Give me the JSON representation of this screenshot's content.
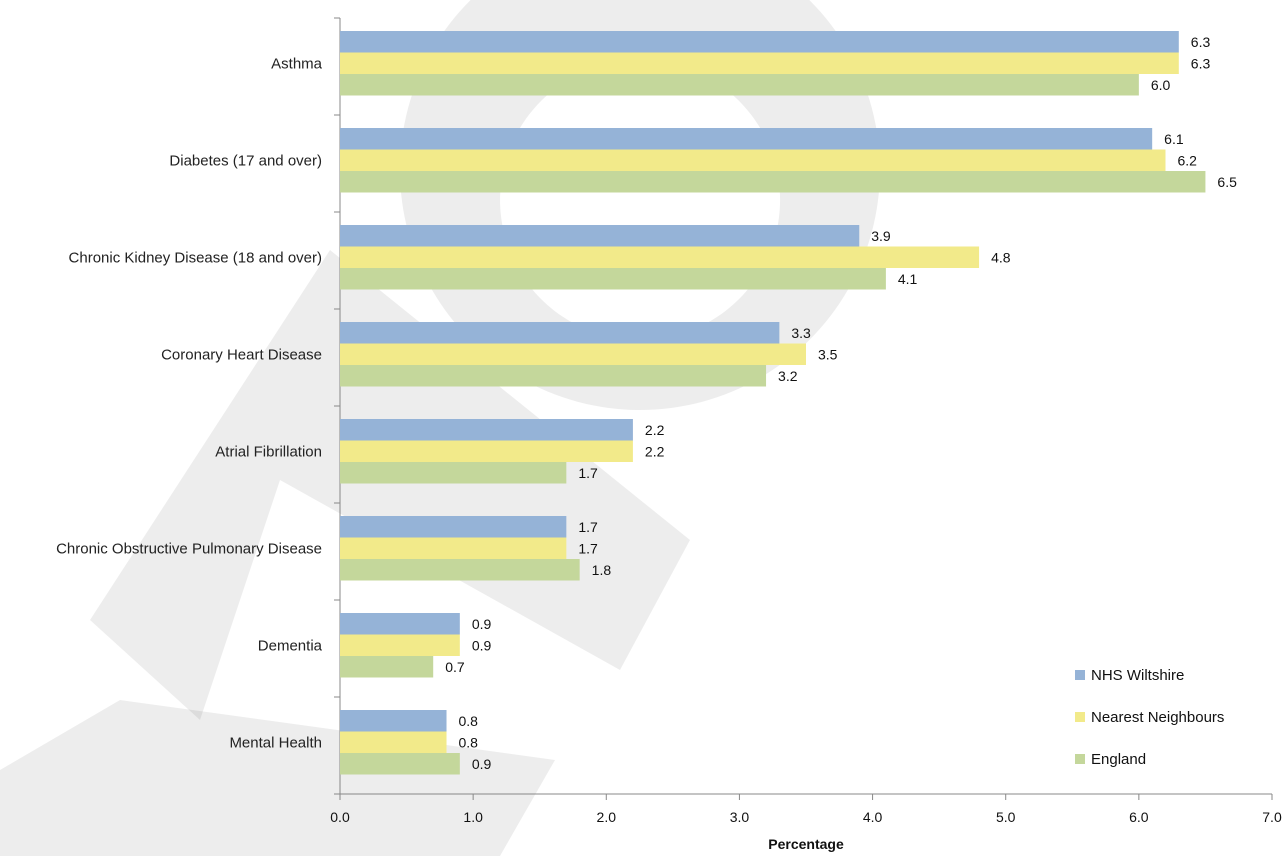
{
  "chart_data": {
    "type": "bar",
    "orientation": "horizontal",
    "categories": [
      "Asthma",
      "Diabetes (17 and over)",
      "Chronic Kidney Disease (18 and over)",
      "Coronary Heart Disease",
      "Atrial Fibrillation",
      "Chronic Obstructive Pulmonary Disease",
      "Dementia",
      "Mental Health"
    ],
    "series": [
      {
        "name": "NHS Wiltshire",
        "color": "#95b3d7",
        "values": [
          6.3,
          6.1,
          3.9,
          3.3,
          2.2,
          1.7,
          0.9,
          0.8
        ],
        "labels": [
          "6.3",
          "6.1",
          "3.9",
          "3.3",
          "2.2",
          "1.7",
          "0.9",
          "0.8"
        ]
      },
      {
        "name": "Nearest Neighbours",
        "color": "#f2ea8a",
        "values": [
          6.3,
          6.2,
          4.8,
          3.5,
          2.2,
          1.7,
          0.9,
          0.8
        ],
        "labels": [
          "6.3",
          "6.2",
          "4.8",
          "3.5",
          "2.2",
          "1.7",
          "0.9",
          "0.8"
        ]
      },
      {
        "name": "England",
        "color": "#c4d79b",
        "values": [
          6.0,
          6.5,
          4.1,
          3.2,
          1.7,
          1.8,
          0.7,
          0.9
        ],
        "labels": [
          "6.0",
          "6.5",
          "4.1",
          "3.2",
          "1.7",
          "1.8",
          "0.7",
          "0.9"
        ]
      }
    ],
    "xlabel": "Percentage",
    "xlim": [
      0,
      7
    ],
    "xticks": [
      "0.0",
      "1.0",
      "2.0",
      "3.0",
      "4.0",
      "5.0",
      "6.0",
      "7.0"
    ],
    "grid": false,
    "legend_position": "bottom-right"
  }
}
